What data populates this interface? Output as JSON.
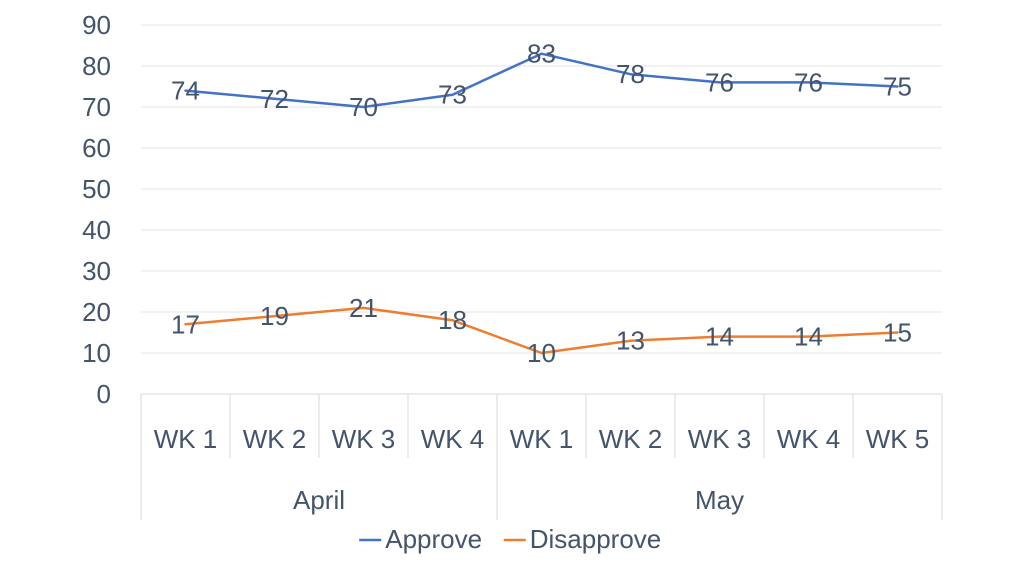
{
  "chart_data": {
    "type": "line",
    "title": "",
    "xlabel": "",
    "ylabel": "",
    "ylim": [
      0,
      90
    ],
    "yticks": [
      0,
      10,
      20,
      30,
      40,
      50,
      60,
      70,
      80,
      90
    ],
    "grid": true,
    "legend_position": "bottom",
    "categories": [
      "WK 1",
      "WK 2",
      "WK 3",
      "WK 4",
      "WK 1",
      "WK 2",
      "WK 3",
      "WK 4",
      "WK 5"
    ],
    "groups": [
      {
        "label": "April",
        "count": 4
      },
      {
        "label": "May",
        "count": 5
      }
    ],
    "series": [
      {
        "name": "Approve",
        "color": "#4472c4",
        "values": [
          74,
          72,
          70,
          73,
          83,
          78,
          76,
          76,
          75
        ]
      },
      {
        "name": "Disapprove",
        "color": "#ed7d31",
        "values": [
          17,
          19,
          21,
          18,
          10,
          13,
          14,
          14,
          15
        ]
      }
    ],
    "gridline_color": "#e6e6e6",
    "axis_line_color": "#d9d9d9",
    "text_color": "#44546a"
  }
}
